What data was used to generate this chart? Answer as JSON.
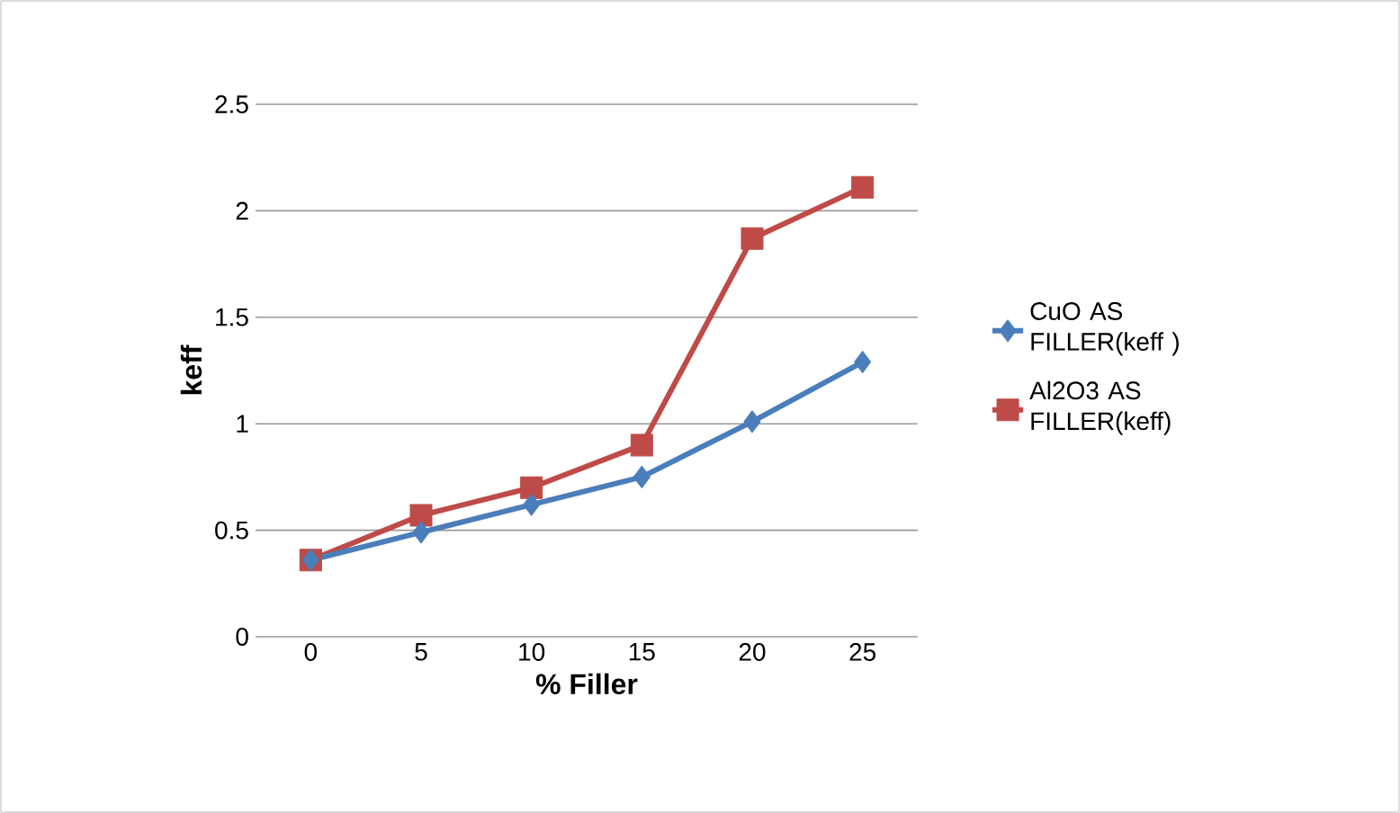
{
  "chart_data": {
    "type": "line",
    "xlabel": "% Filler",
    "ylabel": "keff",
    "categories": [
      "0",
      "5",
      "10",
      "15",
      "20",
      "25"
    ],
    "series": [
      {
        "name": "CuO AS FILLER(keff )",
        "color": "#4a7ebb",
        "marker": "diamond",
        "values": [
          0.36,
          0.49,
          0.62,
          0.75,
          1.01,
          1.29
        ]
      },
      {
        "name": "Al2O3 AS FILLER(keff)",
        "color": "#be4b48",
        "marker": "square",
        "values": [
          0.36,
          0.57,
          0.7,
          0.9,
          1.87,
          2.11
        ]
      }
    ],
    "ylim": [
      0,
      2.5
    ],
    "yticks": [
      0,
      0.5,
      1,
      1.5,
      2,
      2.5
    ],
    "grid": "y",
    "legend": "right",
    "line_style": "solid"
  }
}
